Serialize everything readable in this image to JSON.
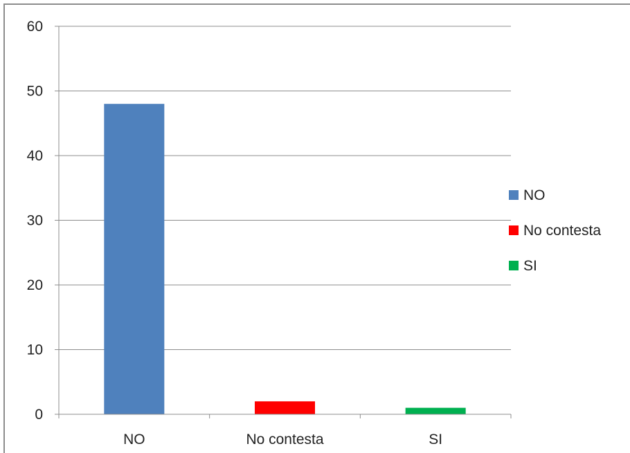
{
  "chart_data": {
    "type": "bar",
    "categories": [
      "NO",
      "No contesta",
      "SI"
    ],
    "values": [
      48,
      2,
      1
    ],
    "colors": [
      "#4f81bd",
      "#ff0000",
      "#00b050"
    ],
    "title": "",
    "xlabel": "",
    "ylabel": "",
    "ylim": [
      0,
      60
    ],
    "yticks": [
      0,
      10,
      20,
      30,
      40,
      50,
      60
    ],
    "grid": true,
    "legend": {
      "placement": "right",
      "entries": [
        "NO",
        "No contesta",
        "SI"
      ]
    }
  }
}
